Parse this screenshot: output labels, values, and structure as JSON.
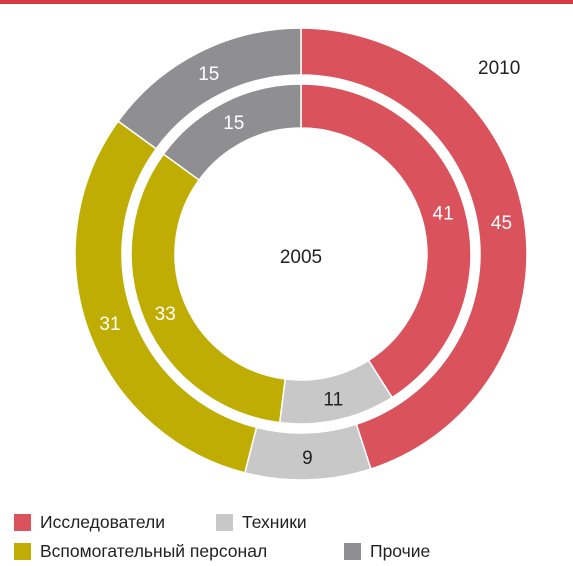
{
  "chart_data": {
    "type": "pie",
    "subtype": "double-donut",
    "categories": [
      "Исследователи",
      "Техники",
      "Вспомогательный персонал",
      "Прочие"
    ],
    "colors": [
      "#d9525c",
      "#c8c8c9",
      "#c0ad04",
      "#8f8f91"
    ],
    "series": [
      {
        "name": "2010",
        "ring": "outer",
        "values": [
          45,
          9,
          31,
          15
        ]
      },
      {
        "name": "2005",
        "ring": "inner",
        "values": [
          41,
          11,
          33,
          15
        ]
      }
    ]
  },
  "legend": [
    {
      "label": "Исследователи",
      "color": "#d9525c"
    },
    {
      "label": "Техники",
      "color": "#c8c8c9"
    },
    {
      "label": "Вспомогательный персонал",
      "color": "#c0ad04"
    },
    {
      "label": "Прочие",
      "color": "#8f8f91"
    }
  ]
}
